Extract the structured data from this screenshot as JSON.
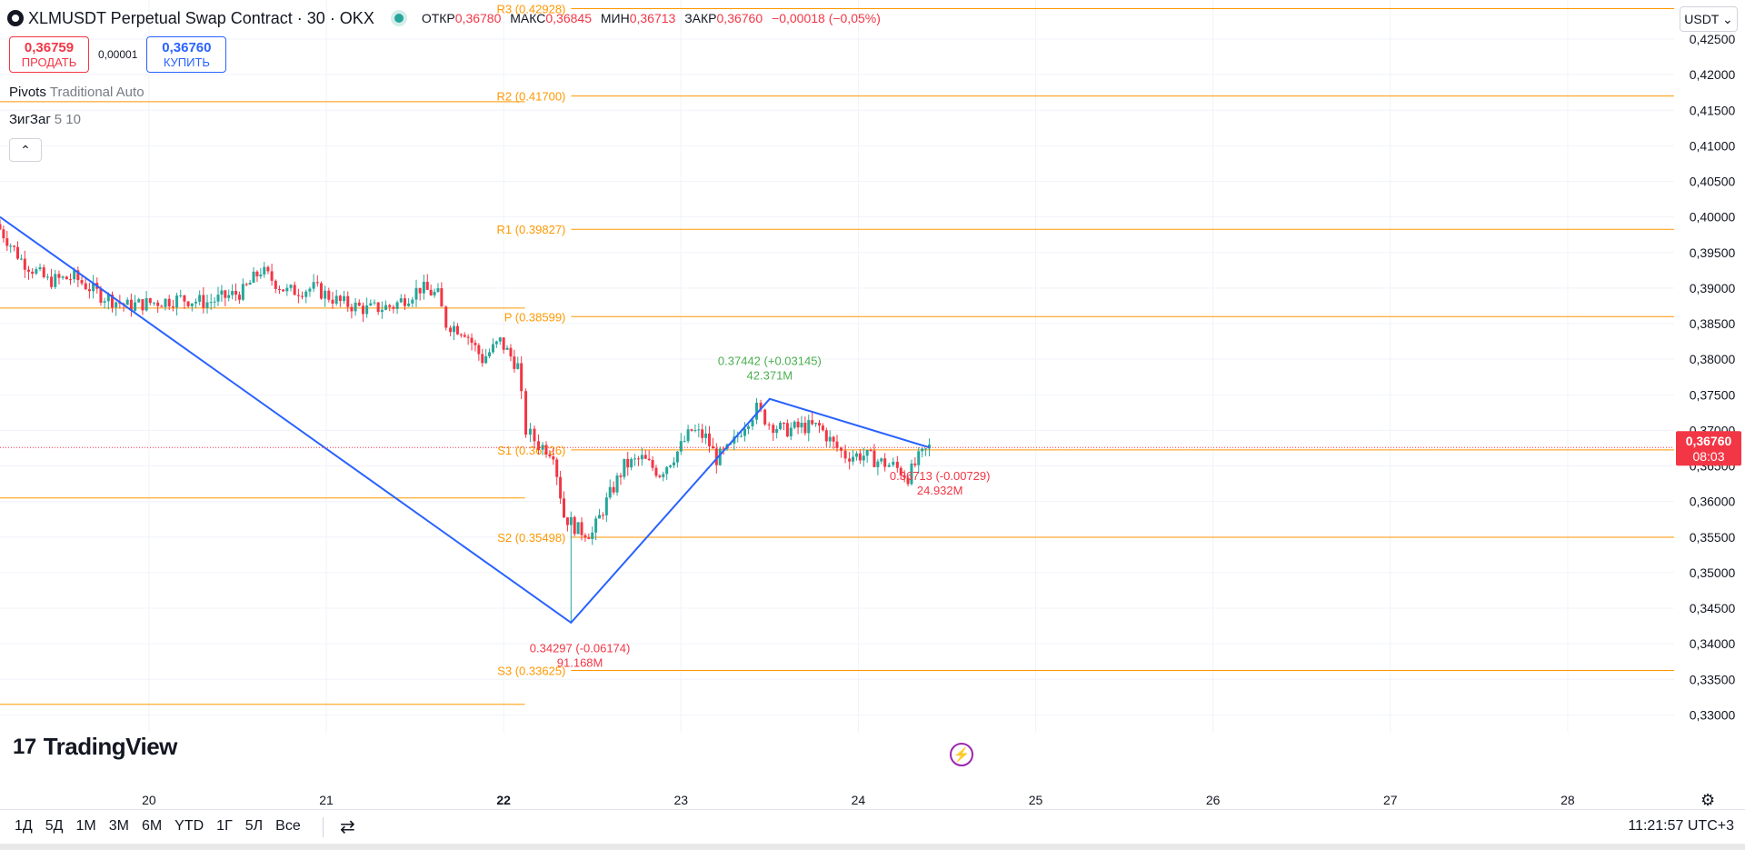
{
  "header": {
    "symbol_title": "XLMUSDT Perpetual Swap Contract · 30 · OKX",
    "ohlc": {
      "open_label": "ОТКР",
      "open": "0,36780",
      "high_label": "МАКС",
      "high": "0,36845",
      "low_label": "МИН",
      "low": "0,36713",
      "close_label": "ЗАКР",
      "close": "0,36760",
      "change": "−0,00018 (−0,05%)"
    }
  },
  "trade": {
    "sell_price": "0,36759",
    "sell_label": "ПРОДАТЬ",
    "spread": "0,00001",
    "buy_price": "0,36760",
    "buy_label": "КУПИТЬ"
  },
  "indicators": [
    {
      "name": "Pivots",
      "args": "Traditional Auto"
    },
    {
      "name": "ЗигЗаг",
      "args": "5 10"
    }
  ],
  "collapse_glyph": "⌃",
  "currency_select": "USDT ⌄",
  "brand": {
    "mark": "17",
    "name": "TradingView"
  },
  "colors": {
    "up": "#26a69a",
    "down": "#f23645",
    "pivot": "#ff9800",
    "zigzag": "#2962ff",
    "badge": "#f23645",
    "zz_up_label": "#4caf50",
    "zz_down_label": "#f23645"
  },
  "price_axis": {
    "min": 0.3275,
    "max": 0.4305,
    "ticks": [
      "0,42500",
      "0,42000",
      "0,41500",
      "0,41000",
      "0,40500",
      "0,40000",
      "0,39500",
      "0,39000",
      "0,38500",
      "0,38000",
      "0,37500",
      "0,37000",
      "0,36500",
      "0,36000",
      "0,35500",
      "0,35000",
      "0,34500",
      "0,34000",
      "0,33500",
      "0,33000"
    ],
    "tick_values": [
      0.425,
      0.42,
      0.415,
      0.41,
      0.405,
      0.4,
      0.395,
      0.39,
      0.385,
      0.38,
      0.375,
      0.37,
      0.365,
      0.36,
      0.355,
      0.35,
      0.345,
      0.34,
      0.335,
      0.33
    ],
    "last_price": "0,36760",
    "last_value": 0.3676,
    "countdown": "08:03"
  },
  "time_axis": {
    "labels": [
      "20",
      "21",
      "22",
      "23",
      "24",
      "25",
      "26",
      "27",
      "28"
    ],
    "bold": [
      "22"
    ],
    "day_values": [
      20,
      21,
      22,
      23,
      24,
      25,
      26,
      27,
      28
    ],
    "first_visible_day": 19.16,
    "last_visible_day": 28.6
  },
  "pivots": [
    {
      "label": "R3 (0.42928)",
      "value": 0.42928,
      "from_day": 21.95
    },
    {
      "label": "R2 (0.41700)",
      "value": 0.417,
      "from_day": 21.95
    },
    {
      "label": "R1 (0.39827)",
      "value": 0.39827,
      "from_day": 21.95
    },
    {
      "label": "P (0.38599)",
      "value": 0.38599,
      "from_day": 21.95
    },
    {
      "label": "S1 (0.36726)",
      "value": 0.36726,
      "from_day": 21.95
    },
    {
      "label": "S2 (0.35498)",
      "value": 0.35498,
      "from_day": 21.95
    },
    {
      "label": "S3 (0.33625)",
      "value": 0.33625,
      "from_day": 21.95
    }
  ],
  "previous_pivots": [
    {
      "value": 0.4162,
      "to_day": 22.12
    },
    {
      "value": 0.3872,
      "to_day": 22.12
    },
    {
      "value": 0.3605,
      "to_day": 22.12
    },
    {
      "value": 0.3315,
      "to_day": 22.12
    }
  ],
  "zigzag": {
    "points": [
      {
        "day": 19.16,
        "price": 0.4
      },
      {
        "day": 22.38,
        "price": 0.34297
      },
      {
        "day": 23.5,
        "price": 0.37442
      },
      {
        "day": 24.4,
        "price": 0.3676
      }
    ],
    "labels": [
      {
        "text": "0.34297 (-0.06174)",
        "sub": "91.168M",
        "day": 22.43,
        "price": 0.3388,
        "dir": "down"
      },
      {
        "text": "0.37442 (+0.03145)",
        "sub": "42.371M",
        "day": 23.5,
        "price": 0.3792,
        "dir": "up"
      },
      {
        "text": "0.36713 (-0.00729)",
        "sub": "24.932M",
        "day": 24.46,
        "price": 0.363,
        "dir": "down"
      }
    ]
  },
  "candle_anchors": [
    [
      19.16,
      0.399
    ],
    [
      19.3,
      0.394
    ],
    [
      19.45,
      0.391
    ],
    [
      19.6,
      0.3915
    ],
    [
      19.75,
      0.389
    ],
    [
      19.9,
      0.3875
    ],
    [
      20.05,
      0.388
    ],
    [
      20.2,
      0.3885
    ],
    [
      20.35,
      0.388
    ],
    [
      20.55,
      0.3895
    ],
    [
      20.65,
      0.3925
    ],
    [
      20.8,
      0.3895
    ],
    [
      20.95,
      0.39
    ],
    [
      21.1,
      0.388
    ],
    [
      21.25,
      0.387
    ],
    [
      21.4,
      0.3875
    ],
    [
      21.55,
      0.39
    ],
    [
      21.65,
      0.389
    ],
    [
      21.7,
      0.385
    ],
    [
      21.8,
      0.384
    ],
    [
      21.9,
      0.38
    ],
    [
      22.0,
      0.3825
    ],
    [
      22.1,
      0.379
    ],
    [
      22.15,
      0.37
    ],
    [
      22.22,
      0.368
    ],
    [
      22.3,
      0.367
    ],
    [
      22.36,
      0.358
    ],
    [
      22.44,
      0.356
    ],
    [
      22.52,
      0.3555
    ],
    [
      22.6,
      0.36
    ],
    [
      22.7,
      0.365
    ],
    [
      22.8,
      0.366
    ],
    [
      22.9,
      0.364
    ],
    [
      23.0,
      0.367
    ],
    [
      23.08,
      0.37
    ],
    [
      23.16,
      0.369
    ],
    [
      23.22,
      0.366
    ],
    [
      23.3,
      0.3675
    ],
    [
      23.38,
      0.371
    ],
    [
      23.45,
      0.373
    ],
    [
      23.52,
      0.371
    ],
    [
      23.6,
      0.37
    ],
    [
      23.7,
      0.3705
    ],
    [
      23.8,
      0.3705
    ],
    [
      23.88,
      0.368
    ],
    [
      23.95,
      0.3665
    ],
    [
      24.05,
      0.3665
    ],
    [
      24.15,
      0.3655
    ],
    [
      24.22,
      0.365
    ],
    [
      24.3,
      0.3635
    ],
    [
      24.36,
      0.366
    ],
    [
      24.42,
      0.3676
    ]
  ],
  "time_ranges": [
    "1Д",
    "5Д",
    "1М",
    "3М",
    "6М",
    "YTD",
    "1Г",
    "5Л",
    "Все"
  ],
  "date_range_glyph": "⇄",
  "settings_glyph": "⚙",
  "bolt_glyph": "⚡",
  "clock": "11:21:57 UTC+3"
}
